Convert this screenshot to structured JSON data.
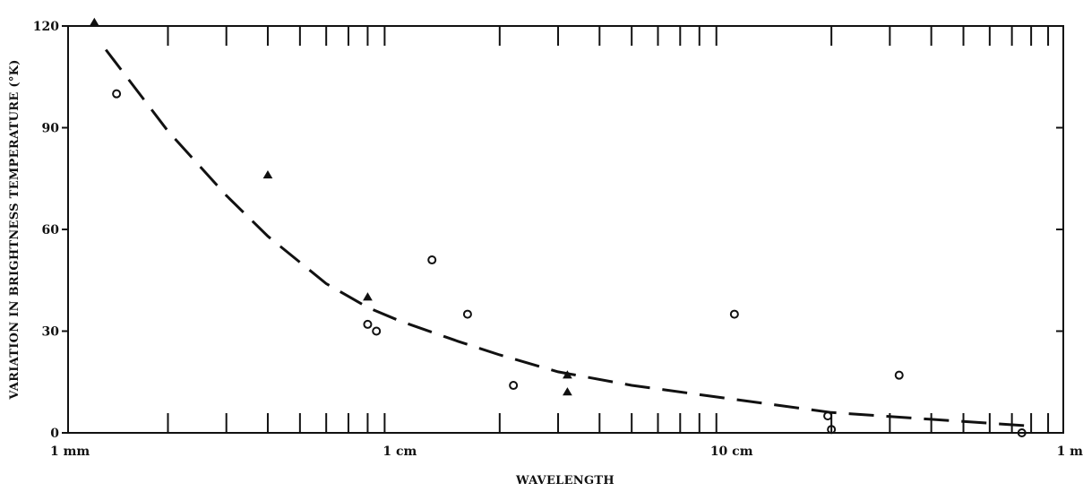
{
  "chart_data": {
    "type": "scatter",
    "title": "",
    "xlabel": "WAVELENGTH",
    "ylabel": "VARIATION IN BRIGHTNESS TEMPERATURE (°K)",
    "x_scale": "log",
    "x_unit": "cm",
    "xlim": [
      0.1,
      100
    ],
    "ylim": [
      0,
      120
    ],
    "x_tick_labels": [
      {
        "value": 0.1,
        "label": "1 mm"
      },
      {
        "value": 1,
        "label": "1 cm"
      },
      {
        "value": 10,
        "label": "10 cm"
      },
      {
        "value": 100,
        "label": "1 m"
      }
    ],
    "y_ticks": [
      0,
      30,
      60,
      90,
      120
    ],
    "grid": false,
    "series": [
      {
        "marker": "circle",
        "points": [
          {
            "x": 0.14,
            "y": 100
          },
          {
            "x": 0.8,
            "y": 32
          },
          {
            "x": 0.85,
            "y": 30
          },
          {
            "x": 1.25,
            "y": 51
          },
          {
            "x": 1.6,
            "y": 35
          },
          {
            "x": 2.2,
            "y": 14
          },
          {
            "x": 10.2,
            "y": 35
          },
          {
            "x": 19.5,
            "y": 5
          },
          {
            "x": 20,
            "y": 1
          },
          {
            "x": 32,
            "y": 17
          },
          {
            "x": 75,
            "y": 0
          }
        ]
      },
      {
        "marker": "triangle",
        "points": [
          {
            "x": 0.12,
            "y": 121
          },
          {
            "x": 0.4,
            "y": 76
          },
          {
            "x": 0.8,
            "y": 40
          },
          {
            "x": 3.2,
            "y": 17
          },
          {
            "x": 3.2,
            "y": 12
          }
        ]
      }
    ],
    "fit_curve": {
      "style": "dashed",
      "points": [
        {
          "x": 0.13,
          "y": 113
        },
        {
          "x": 0.2,
          "y": 89
        },
        {
          "x": 0.3,
          "y": 70
        },
        {
          "x": 0.4,
          "y": 58
        },
        {
          "x": 0.6,
          "y": 44
        },
        {
          "x": 0.8,
          "y": 37
        },
        {
          "x": 1.0,
          "y": 33
        },
        {
          "x": 1.5,
          "y": 27
        },
        {
          "x": 2.0,
          "y": 23
        },
        {
          "x": 3.0,
          "y": 18
        },
        {
          "x": 5.0,
          "y": 14
        },
        {
          "x": 10.0,
          "y": 10
        },
        {
          "x": 20.0,
          "y": 6
        },
        {
          "x": 40.0,
          "y": 4
        },
        {
          "x": 80.0,
          "y": 2
        }
      ]
    }
  }
}
